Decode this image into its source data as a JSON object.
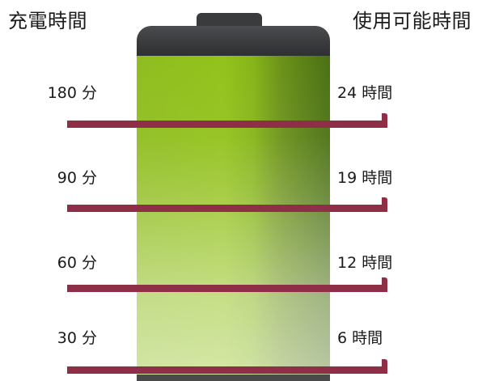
{
  "headings": {
    "charge_time": "充電時間",
    "usage_time": "使用可能時間"
  },
  "colors": {
    "battery_fill": "#93c21b",
    "battery_cap": "#3a3b3d",
    "marker_line": "#8f2f47"
  },
  "levels": [
    {
      "charge": "180 分",
      "usage": "24 時間"
    },
    {
      "charge": "90 分",
      "usage": "19 時間"
    },
    {
      "charge": "60 分",
      "usage": "12 時間"
    },
    {
      "charge": "30 分",
      "usage": "6 時間"
    }
  ]
}
